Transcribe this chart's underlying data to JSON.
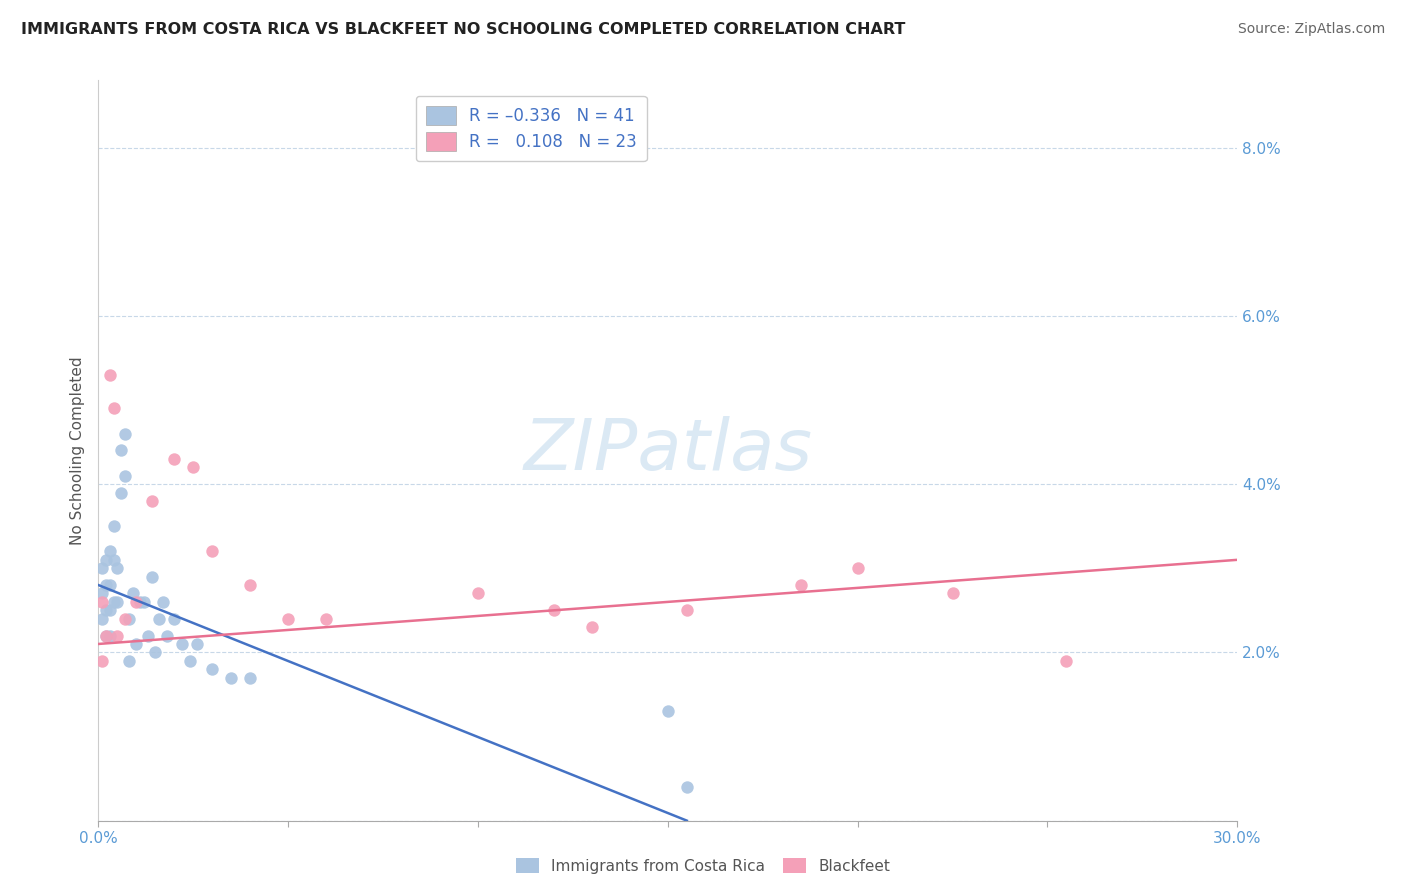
{
  "title": "IMMIGRANTS FROM COSTA RICA VS BLACKFEET NO SCHOOLING COMPLETED CORRELATION CHART",
  "source": "Source: ZipAtlas.com",
  "ylabel": "No Schooling Completed",
  "xlim": [
    0.0,
    0.3
  ],
  "ylim": [
    0.0,
    0.088
  ],
  "xticks": [
    0.0,
    0.05,
    0.1,
    0.15,
    0.2,
    0.25,
    0.3
  ],
  "xticklabels": [
    "0.0%",
    "",
    "",
    "",
    "",
    "",
    "30.0%"
  ],
  "yticks": [
    0.0,
    0.02,
    0.04,
    0.06,
    0.08
  ],
  "yticklabels": [
    "",
    "2.0%",
    "4.0%",
    "6.0%",
    "8.0%"
  ],
  "grid_color": "#c8d8e8",
  "background_color": "#ffffff",
  "axis_color": "#5b9bd5",
  "legend_text_color": "#4472c4",
  "series1_color": "#aac4e0",
  "series2_color": "#f4a0b8",
  "trendline1_color": "#4472c4",
  "trendline2_color": "#e87090",
  "trendline1_x": [
    0.0,
    0.155
  ],
  "trendline1_y": [
    0.028,
    0.0
  ],
  "trendline2_x": [
    0.0,
    0.3
  ],
  "trendline2_y": [
    0.021,
    0.031
  ],
  "blue_scatter_x": [
    0.001,
    0.001,
    0.001,
    0.002,
    0.002,
    0.002,
    0.002,
    0.003,
    0.003,
    0.003,
    0.003,
    0.004,
    0.004,
    0.004,
    0.005,
    0.005,
    0.006,
    0.006,
    0.007,
    0.007,
    0.008,
    0.008,
    0.009,
    0.01,
    0.011,
    0.012,
    0.013,
    0.014,
    0.015,
    0.016,
    0.017,
    0.018,
    0.02,
    0.022,
    0.024,
    0.026,
    0.03,
    0.035,
    0.04,
    0.15,
    0.155
  ],
  "blue_scatter_y": [
    0.03,
    0.027,
    0.024,
    0.031,
    0.028,
    0.025,
    0.022,
    0.032,
    0.028,
    0.025,
    0.022,
    0.035,
    0.031,
    0.026,
    0.03,
    0.026,
    0.044,
    0.039,
    0.046,
    0.041,
    0.024,
    0.019,
    0.027,
    0.021,
    0.026,
    0.026,
    0.022,
    0.029,
    0.02,
    0.024,
    0.026,
    0.022,
    0.024,
    0.021,
    0.019,
    0.021,
    0.018,
    0.017,
    0.017,
    0.013,
    0.004
  ],
  "pink_scatter_x": [
    0.001,
    0.001,
    0.002,
    0.003,
    0.004,
    0.005,
    0.007,
    0.01,
    0.014,
    0.02,
    0.025,
    0.03,
    0.04,
    0.05,
    0.06,
    0.1,
    0.12,
    0.13,
    0.155,
    0.185,
    0.2,
    0.225,
    0.255
  ],
  "pink_scatter_y": [
    0.026,
    0.019,
    0.022,
    0.053,
    0.049,
    0.022,
    0.024,
    0.026,
    0.038,
    0.043,
    0.042,
    0.032,
    0.028,
    0.024,
    0.024,
    0.027,
    0.025,
    0.023,
    0.025,
    0.028,
    0.03,
    0.027,
    0.019
  ],
  "watermark_text": "ZIPatlas",
  "watermark_color": "#cce0f0",
  "watermark_alpha": 0.7
}
